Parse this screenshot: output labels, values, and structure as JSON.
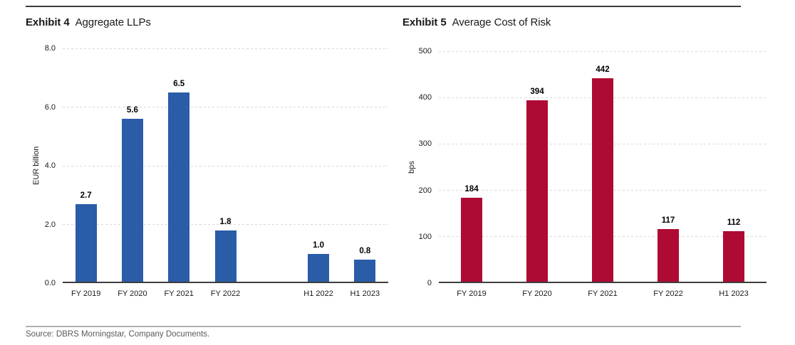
{
  "page": {
    "source_note": "Source: DBRS Morningstar, Company Documents."
  },
  "chart_data": [
    {
      "type": "bar",
      "exhibit_label": "Exhibit 4",
      "title": "Aggregate LLPs",
      "ylabel": "EUR billion",
      "categories": [
        "FY 2019",
        "FY 2020",
        "FY 2021",
        "FY 2022",
        "H1 2022",
        "H1 2023"
      ],
      "values": [
        2.7,
        5.6,
        6.5,
        1.8,
        1.0,
        0.8
      ],
      "value_labels": [
        "2.7",
        "5.6",
        "6.5",
        "1.8",
        "1.0",
        "0.8"
      ],
      "ylim": [
        0,
        8
      ],
      "yticks": [
        0,
        2,
        4,
        6,
        8
      ],
      "ytick_labels": [
        "0.0",
        "2.0",
        "4.0",
        "6.0",
        "8.0"
      ],
      "bar_color": "#2A5CA8",
      "grid": "horizontal-dashed",
      "legend": "none",
      "layout": {
        "slots": [
          0,
          1,
          2,
          3,
          5,
          6
        ],
        "total_slots": 7
      }
    },
    {
      "type": "bar",
      "exhibit_label": "Exhibit 5",
      "title": "Average Cost of Risk",
      "ylabel": "bps",
      "categories": [
        "FY 2019",
        "FY 2020",
        "FY 2021",
        "FY 2022",
        "H1 2023"
      ],
      "values": [
        184,
        394,
        442,
        117,
        112
      ],
      "value_labels": [
        "184",
        "394",
        "442",
        "117",
        "112"
      ],
      "ylim": [
        0,
        500
      ],
      "yticks": [
        0,
        100,
        200,
        300,
        400,
        500
      ],
      "ytick_labels": [
        "0",
        "100",
        "200",
        "300",
        "400",
        "500"
      ],
      "bar_color": "#AE0A33",
      "grid": "horizontal-dashed",
      "legend": "none",
      "layout": {
        "slots": [
          0,
          1,
          2,
          3,
          4
        ],
        "total_slots": 5
      }
    }
  ]
}
